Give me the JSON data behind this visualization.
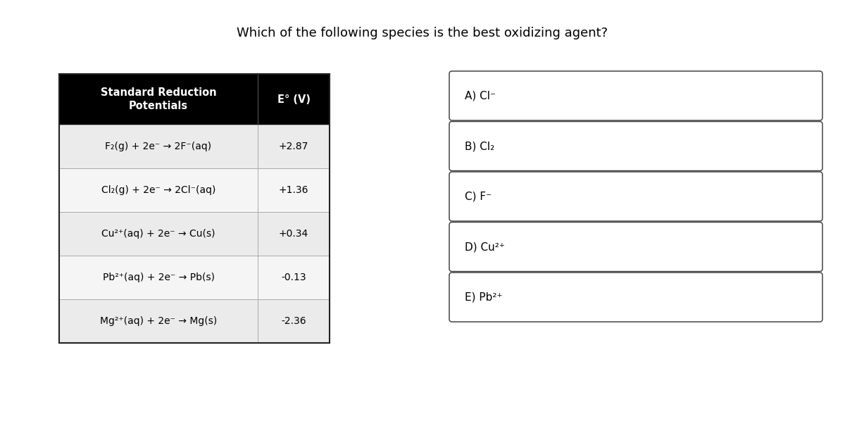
{
  "title": "Which of the following species is the best oxidizing agent?",
  "title_fontsize": 13,
  "table_header_col1": "Standard Reduction\nPotentials",
  "table_header_col2": "E° (V)",
  "table_rows": [
    [
      "F₂(g) + 2e⁻ → 2F⁻(aq)",
      "+2.87"
    ],
    [
      "Cl₂(g) + 2e⁻ → 2Cl⁻(aq)",
      "+1.36"
    ],
    [
      "Cu²⁺(aq) + 2e⁻ → Cu(s)",
      "+0.34"
    ],
    [
      "Pb²⁺(aq) + 2e⁻ → Pb(s)",
      "-0.13"
    ],
    [
      "Mg²⁺(aq) + 2e⁻ → Mg(s)",
      "-2.36"
    ]
  ],
  "header_bg": "#000000",
  "header_fg": "#ffffff",
  "row_bg_odd": "#ebebeb",
  "row_bg_even": "#f5f5f5",
  "table_border_color": "#222222",
  "options": [
    "A) Cl⁻",
    "B) Cl₂",
    "C) F⁻",
    "D) Cu²⁺",
    "E) Pb²⁺"
  ],
  "bg_color": "#ffffff",
  "fig_width": 12.0,
  "fig_height": 6.22,
  "dpi": 100
}
